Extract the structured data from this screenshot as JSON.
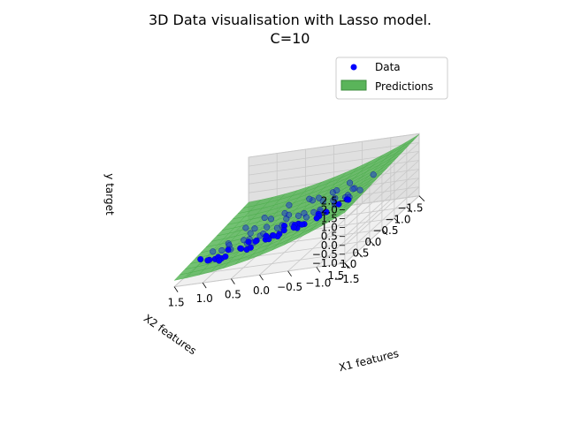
{
  "chart_data": {
    "type": "scatter3d",
    "title_line1": "3D Data visualisation with Lasso model.",
    "title_line2": "C=10",
    "xlabel": "X1 features",
    "ylabel": "X2 features",
    "zlabel": "y target",
    "xlim": [
      -1.5,
      1.5
    ],
    "ylim": [
      -1.5,
      1.5
    ],
    "zlim": [
      -1.0,
      2.5
    ],
    "x_ticks": [
      "1.5",
      "1.0",
      "0.5",
      "0.0",
      "−0.5",
      "−1.0",
      "−1.5"
    ],
    "y_ticks": [
      "−1.5",
      "−1.0",
      "−0.5",
      "0.0",
      "0.5",
      "1.0",
      "1.5"
    ],
    "z_ticks": [
      "2.5",
      "2.0",
      "1.5",
      "1.0",
      "0.5",
      "0.0",
      "−0.5",
      "−1.0"
    ],
    "grid": true,
    "legend_position": "top-right",
    "legend": [
      {
        "label": "Data",
        "color": "#0000ff",
        "marker": "circle"
      },
      {
        "label": "Predictions",
        "color": "#5ab45a",
        "marker": "patch"
      }
    ],
    "colors": {
      "data": "#0000ff",
      "surface": "#4caf4c",
      "surface_edge": "#2e7d32"
    },
    "series": [
      {
        "kind": "scatter",
        "label": "Data",
        "x": [
          -1.2,
          -1.1,
          -0.9,
          -1.0,
          -0.8,
          -0.6,
          -0.7,
          -0.5,
          -0.3,
          -0.4,
          -0.2,
          0.0,
          -0.1,
          0.1,
          0.2,
          0.3,
          0.4,
          0.5,
          0.6,
          0.7,
          0.8,
          0.9,
          1.0,
          1.1,
          -0.9,
          -0.6,
          -0.3,
          0.0,
          0.3,
          0.6,
          0.9,
          1.2,
          -1.3,
          -1.0,
          -0.7,
          -0.4,
          -0.1,
          0.2,
          0.5,
          0.8,
          1.1,
          -0.8,
          -0.5,
          -0.2,
          0.1,
          0.4,
          0.7,
          1.0,
          -1.1,
          -0.7,
          -0.3,
          0.1,
          0.5,
          0.9,
          1.3,
          -0.6,
          -0.2,
          0.2,
          0.6,
          1.0,
          -1.0,
          -0.4,
          0.0,
          0.4,
          0.8,
          1.2,
          -0.9,
          -0.5,
          -0.1,
          0.3,
          0.7,
          1.1,
          -0.2,
          0.2,
          0.6,
          1.0,
          -0.7,
          -0.3,
          0.1,
          0.5,
          0.9,
          1.3,
          0.3,
          0.7,
          -0.5,
          0.0,
          0.4,
          0.8
        ],
        "y": [
          0.2,
          0.4,
          0.1,
          0.6,
          0.3,
          0.5,
          0.8,
          0.2,
          0.6,
          0.9,
          0.4,
          0.7,
          1.0,
          0.3,
          0.8,
          0.5,
          1.1,
          0.6,
          0.9,
          0.4,
          1.2,
          0.7,
          1.0,
          0.5,
          -0.2,
          -0.1,
          0.0,
          -0.3,
          -0.1,
          0.1,
          -0.2,
          0.0,
          0.9,
          1.1,
          1.3,
          1.0,
          1.2,
          1.4,
          1.1,
          1.3,
          1.0,
          -0.5,
          -0.4,
          -0.6,
          -0.3,
          -0.5,
          -0.4,
          -0.6,
          0.5,
          0.7,
          0.3,
          0.9,
          0.2,
          0.6,
          0.4,
          1.5,
          1.4,
          1.2,
          1.5,
          1.3,
          -0.8,
          -0.7,
          -0.9,
          -0.6,
          -0.8,
          -0.7,
          0.0,
          0.2,
          0.4,
          0.1,
          0.3,
          0.2,
          -1.0,
          -1.1,
          -0.9,
          -1.0,
          1.4,
          1.2,
          1.0,
          0.8,
          1.1,
          0.9,
          -1.2,
          -1.3,
          -1.0,
          0.5,
          0.7,
          0.3
        ],
        "z": [
          1.6,
          1.5,
          1.2,
          1.4,
          1.1,
          0.9,
          1.0,
          0.7,
          0.6,
          0.7,
          0.4,
          0.3,
          0.5,
          0.1,
          0.2,
          0.0,
          0.1,
          -0.1,
          0.0,
          -0.3,
          -0.1,
          -0.2,
          -0.3,
          -0.4,
          1.3,
          0.9,
          0.5,
          0.2,
          -0.1,
          -0.3,
          -0.4,
          -0.6,
          1.9,
          1.6,
          1.3,
          1.0,
          0.8,
          0.5,
          0.2,
          -0.1,
          -0.3,
          1.0,
          0.7,
          0.4,
          0.1,
          -0.2,
          -0.4,
          -0.6,
          1.5,
          1.0,
          0.6,
          0.3,
          -0.1,
          -0.3,
          -0.5,
          1.4,
          1.0,
          0.6,
          0.3,
          0.0,
          1.3,
          0.8,
          0.3,
          -0.1,
          -0.4,
          -0.6,
          1.2,
          0.8,
          0.4,
          0.0,
          -0.2,
          -0.5,
          0.4,
          0.0,
          -0.3,
          -0.5,
          1.4,
          1.0,
          0.6,
          0.2,
          -0.1,
          -0.3,
          0.0,
          -0.3,
          0.8,
          0.5,
          0.1,
          -0.2
        ]
      },
      {
        "kind": "surface",
        "label": "Predictions",
        "model": "quadratic",
        "x": [
          -1.5,
          1.5
        ],
        "y": [
          -1.5,
          1.5
        ],
        "z_at_corners": {
          "x_min_y_min": 2.2,
          "x_max_y_min": -0.3,
          "x_min_y_max": 1.6,
          "x_max_y_max": -0.9
        },
        "curvature": 0.45
      }
    ]
  }
}
